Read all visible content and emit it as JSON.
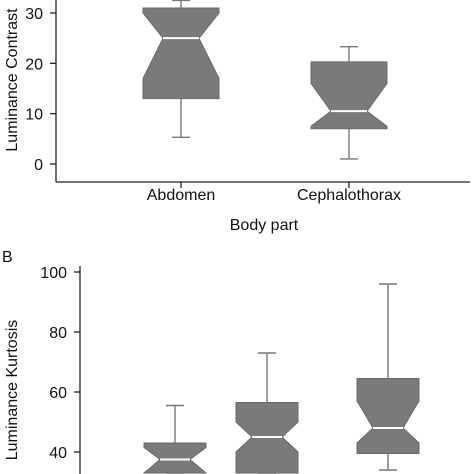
{
  "chart_data": [
    {
      "panel_label": "",
      "type": "box",
      "ylabel": "Luminance Contrast",
      "xlabel": "Body part",
      "categories": [
        "Abdomen",
        "Cephalothorax"
      ],
      "yticks": [
        0,
        10,
        20,
        30
      ],
      "ylim": [
        -4,
        32
      ],
      "boxes": [
        {
          "name": "Abdomen",
          "whisker_low": 5.3,
          "q1": 13.0,
          "notch_low": 17.0,
          "median": 25.0,
          "notch_high": 30.0,
          "q3": 31.0,
          "whisker_high": 32.5
        },
        {
          "name": "Cephalothorax",
          "whisker_low": 1.0,
          "q1": 7.0,
          "notch_low": 7.5,
          "median": 10.5,
          "notch_high": 16.0,
          "q3": 20.3,
          "whisker_high": 23.3
        }
      ],
      "box_color": "#7a7a7a",
      "median_color": "#ffffff"
    },
    {
      "panel_label": "B",
      "type": "box",
      "ylabel": "Luminance Kurtosis",
      "xlabel": "",
      "categories": [
        "",
        "",
        ""
      ],
      "yticks": [
        40,
        60,
        80,
        100
      ],
      "ylim": [
        34,
        102
      ],
      "boxes": [
        {
          "name": "",
          "whisker_low": 33.0,
          "q1": 33.0,
          "notch_low": 33.0,
          "median": 37.5,
          "notch_high": 41.5,
          "q3": 43.0,
          "whisker_high": 55.5
        },
        {
          "name": "",
          "whisker_low": 33.0,
          "q1": 33.0,
          "notch_low": 40.0,
          "median": 45.0,
          "notch_high": 50.0,
          "q3": 56.5,
          "whisker_high": 73.0
        },
        {
          "name": "",
          "whisker_low": 34.0,
          "q1": 39.5,
          "notch_low": 43.0,
          "median": 48.0,
          "notch_high": 57.0,
          "q3": 64.5,
          "whisker_high": 96.0
        }
      ],
      "box_color": "#7a7a7a",
      "median_color": "#ffffff"
    }
  ]
}
